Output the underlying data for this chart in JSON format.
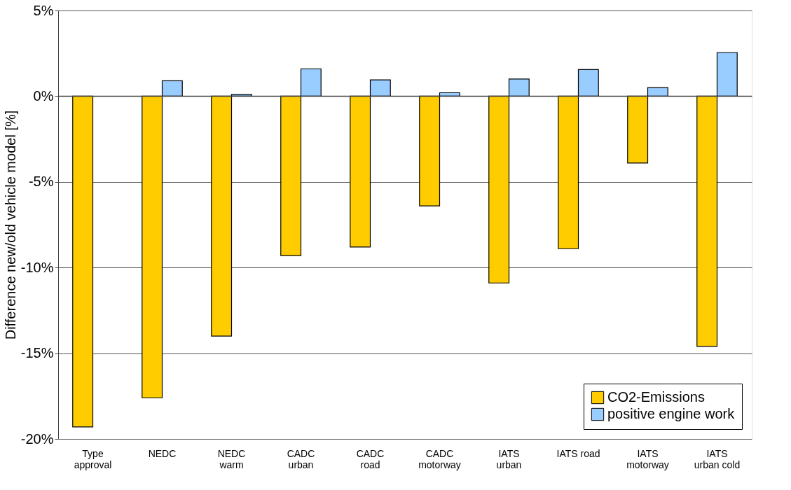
{
  "chart_data": {
    "type": "bar",
    "ylabel": "Difference new/old vehicle model [%]",
    "categories": [
      "Type\napproval",
      "NEDC",
      "NEDC\nwarm",
      "CADC\nurban",
      "CADC\nroad",
      "CADC\nmotorway",
      "IATS\nurban",
      "IATS road",
      "IATS\nmotorway",
      "IATS\nurban cold"
    ],
    "series": [
      {
        "name": "CO2-Emissions",
        "color": "#ffcc00",
        "values": [
          -19.3,
          -17.6,
          -14.0,
          -9.3,
          -8.8,
          -6.4,
          -10.9,
          -8.9,
          -3.9,
          -14.6
        ]
      },
      {
        "name": "positive engine work",
        "color": "#99ccff",
        "values": [
          null,
          0.9,
          0.1,
          1.6,
          0.95,
          0.2,
          1.0,
          1.55,
          0.5,
          2.55
        ]
      }
    ],
    "ylim": [
      -20,
      5
    ],
    "yticks": [
      {
        "value": -20,
        "label": "-20%"
      },
      {
        "value": -15,
        "label": "-15%"
      },
      {
        "value": -10,
        "label": "-10%"
      },
      {
        "value": -5,
        "label": "-5%"
      },
      {
        "value": 0,
        "label": "0%"
      },
      {
        "value": 5,
        "label": "5%"
      }
    ],
    "grid": "y",
    "legend": "bottom right"
  }
}
